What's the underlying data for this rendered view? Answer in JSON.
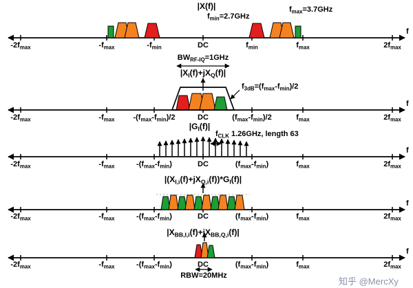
{
  "watermark": "知乎 @MercXy",
  "colors": {
    "red": "#e31e1e",
    "orange": "#f58220",
    "green": "#1e9e35",
    "axis": "#000000"
  },
  "rows": [
    {
      "title": "|X(f)|",
      "axis_end_label": "f",
      "annotations": {
        "fmin": "f~min~=2.7GHz",
        "fmax": "f~max~=3.7GHz"
      },
      "ticks": [
        "-2f~max~",
        "-f~max~",
        "-f~min~",
        "DC",
        "f~min~",
        "f~max~",
        "2f~max~"
      ]
    },
    {
      "title": "|X~I~(f)+jX~Q~(f)|",
      "axis_end_label": "f",
      "annotations": {
        "bw": "BW~RF-IQ~=1GHz",
        "f3db": "f~3dB~=(f~max~-f~min~)/2"
      },
      "ticks": [
        "-2f~max~",
        "-f~max~",
        "-(f~max~-f~min~)/2",
        "DC",
        "(f~max~-f~min~)/2",
        "f~max~",
        "2f~max~"
      ]
    },
    {
      "title": "|G~I~(f)|",
      "axis_end_label": "f",
      "annotations": {
        "fclk": "f~CLK~ 1.26GHz, length 63"
      },
      "ticks": [
        "-2f~max~",
        "-f~max~",
        "-(f~max~-f~min~)",
        "DC",
        "(f~max~-f~min~)",
        "f~max~",
        "2f~max~"
      ]
    },
    {
      "title": "|(X~I,i~(f)+jX~Q,i~(f))*G~I~(f)|",
      "axis_end_label": "f",
      "annotations": {},
      "ticks": [
        "-2f~max~",
        "-f~max~",
        "-(f~max~-f~min~)",
        "DC",
        "(f~max~-f~min~)",
        "f~max~",
        "2f~max~"
      ]
    },
    {
      "title": "|X~BB,I,i~(f)+jX~BB,Q,i~(f)|",
      "axis_end_label": "f",
      "annotations": {
        "rbw": "RBW=20MHz"
      },
      "ticks": [
        "-2f~max~",
        "-f~max~",
        "-(f~max~-f~min~)",
        "DC",
        "(f~max~-f~min~)",
        "f~max~",
        "2f~max~"
      ]
    }
  ]
}
